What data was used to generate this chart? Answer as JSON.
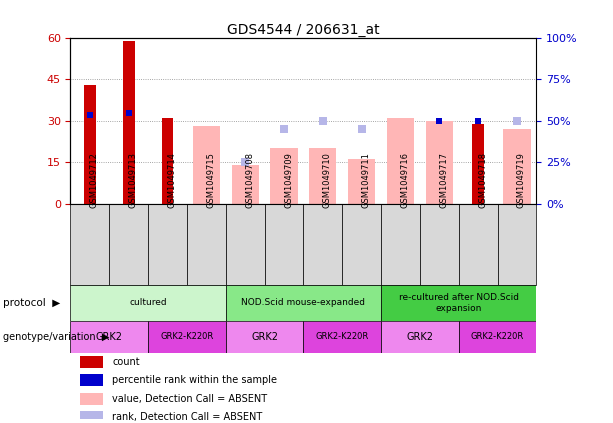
{
  "title": "GDS4544 / 206631_at",
  "samples": [
    "GSM1049712",
    "GSM1049713",
    "GSM1049714",
    "GSM1049715",
    "GSM1049708",
    "GSM1049709",
    "GSM1049710",
    "GSM1049711",
    "GSM1049716",
    "GSM1049717",
    "GSM1049718",
    "GSM1049719"
  ],
  "count_values": [
    43,
    59,
    31,
    null,
    null,
    null,
    null,
    null,
    null,
    null,
    29,
    null
  ],
  "percentile_values": [
    32,
    33,
    null,
    null,
    null,
    null,
    null,
    null,
    null,
    30,
    30,
    null
  ],
  "absent_value_values": [
    null,
    null,
    null,
    28,
    14,
    20,
    20,
    16,
    31,
    30,
    null,
    27
  ],
  "absent_rank_values": [
    null,
    null,
    null,
    null,
    15,
    27,
    30,
    27,
    null,
    null,
    null,
    30
  ],
  "left_ylim": [
    0,
    60
  ],
  "left_yticks": [
    0,
    15,
    30,
    45,
    60
  ],
  "left_yticklabels": [
    "0",
    "15",
    "30",
    "45",
    "60"
  ],
  "right_yticks": [
    0,
    15,
    30,
    45,
    60
  ],
  "right_yticklabels": [
    "0%",
    "25%",
    "50%",
    "75%",
    "100%"
  ],
  "count_color": "#cc0000",
  "percentile_color": "#0000cc",
  "absent_value_color": "#ffb6b6",
  "absent_rank_color": "#b6b6e8",
  "absent_bar_width": 0.7,
  "count_bar_width": 0.3,
  "protocol_groups": [
    {
      "label": "cultured",
      "start": 0,
      "end": 3,
      "color": "#ccf5cc"
    },
    {
      "label": "NOD.Scid mouse-expanded",
      "start": 4,
      "end": 7,
      "color": "#88e888"
    },
    {
      "label": "re-cultured after NOD.Scid\nexpansion",
      "start": 8,
      "end": 11,
      "color": "#44cc44"
    }
  ],
  "genotype_groups": [
    {
      "label": "GRK2",
      "start": 0,
      "end": 1,
      "color": "#ee88ee"
    },
    {
      "label": "GRK2-K220R",
      "start": 2,
      "end": 3,
      "color": "#dd44dd"
    },
    {
      "label": "GRK2",
      "start": 4,
      "end": 5,
      "color": "#ee88ee"
    },
    {
      "label": "GRK2-K220R",
      "start": 6,
      "end": 7,
      "color": "#dd44dd"
    },
    {
      "label": "GRK2",
      "start": 8,
      "end": 9,
      "color": "#ee88ee"
    },
    {
      "label": "GRK2-K220R",
      "start": 10,
      "end": 11,
      "color": "#dd44dd"
    }
  ],
  "legend_items": [
    {
      "label": "count",
      "color": "#cc0000"
    },
    {
      "label": "percentile rank within the sample",
      "color": "#0000cc"
    },
    {
      "label": "value, Detection Call = ABSENT",
      "color": "#ffb6b6"
    },
    {
      "label": "rank, Detection Call = ABSENT",
      "color": "#b6b6e8"
    }
  ],
  "tick_color_left": "#cc0000",
  "tick_color_right": "#0000cc",
  "xtick_bg_color": "#d8d8d8",
  "grid_color": "#888888"
}
